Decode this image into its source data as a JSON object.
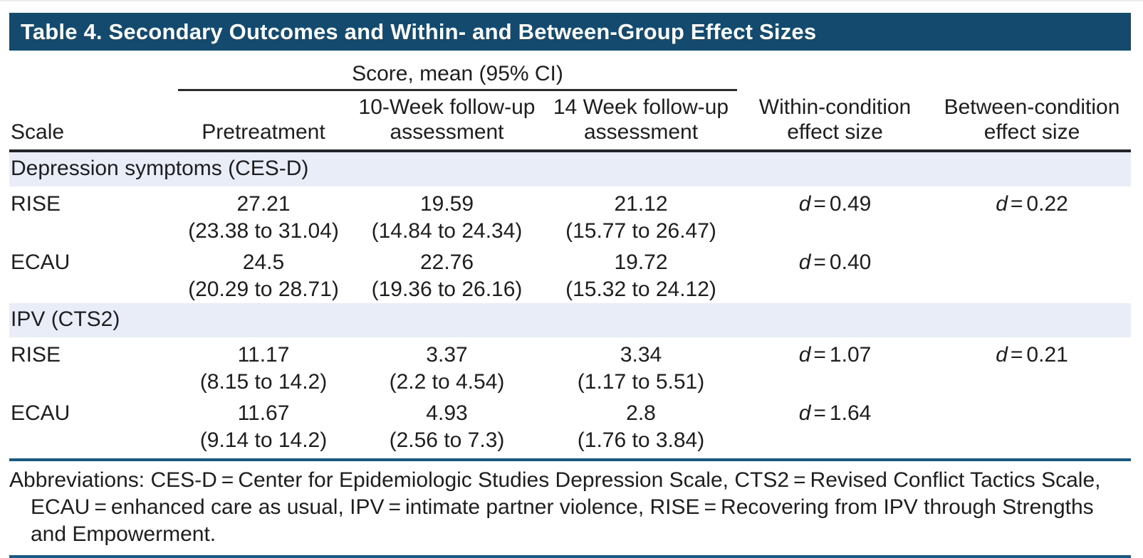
{
  "title": "Table 4. Secondary Outcomes and Within- and Between-Group Effect Sizes",
  "columns": {
    "scale": "Scale",
    "spanner": "Score, mean (95% CI)",
    "pretreatment": "Pretreatment",
    "week10": "10-Week follow-up assessment",
    "week14": "14 Week follow-up assessment",
    "within": "Within-condition effect size",
    "between": "Between-condition effect size"
  },
  "labels": {
    "d_symbol": "d",
    "eq": "="
  },
  "sections": [
    {
      "label": "Depression symptoms (CES-D)",
      "rows": [
        {
          "scale": "RISE",
          "pre": "27.21",
          "pre_ci": "(23.38 to 31.04)",
          "w10": "19.59",
          "w10_ci": "(14.84 to 24.34)",
          "w14": "21.12",
          "w14_ci": "(15.77 to 26.47)",
          "within_d": "0.49",
          "between_d": "0.22"
        },
        {
          "scale": "ECAU",
          "pre": "24.5",
          "pre_ci": "(20.29 to 28.71)",
          "w10": "22.76",
          "w10_ci": "(19.36 to 26.16)",
          "w14": "19.72",
          "w14_ci": "(15.32 to 24.12)",
          "within_d": "0.40",
          "between_d": ""
        }
      ]
    },
    {
      "label": "IPV (CTS2)",
      "rows": [
        {
          "scale": "RISE",
          "pre": "11.17",
          "pre_ci": "(8.15 to 14.2)",
          "w10": "3.37",
          "w10_ci": "(2.2 to 4.54)",
          "w14": "3.34",
          "w14_ci": "(1.17 to 5.51)",
          "within_d": "1.07",
          "between_d": "0.21"
        },
        {
          "scale": "ECAU",
          "pre": "11.67",
          "pre_ci": "(9.14 to 14.2)",
          "w10": "4.93",
          "w10_ci": "(2.56 to 7.3)",
          "w14": "2.8",
          "w14_ci": "(1.76 to 3.84)",
          "within_d": "1.64",
          "between_d": ""
        }
      ]
    }
  ],
  "footnote": {
    "text": "Abbreviations: CES-D = Center for Epidemiologic Studies Depression Scale, CTS2 = Revised Conflict Tactics Scale, ECAU = enhanced care as usual, IPV = intimate partner violence, RISE = Recovering from IPV through Strengths and Empowerment."
  },
  "colors": {
    "header_bar": "#134A6E",
    "band": "#E8EDF8",
    "rule_blue": "#175A83",
    "rule_dark": "#212429",
    "text": "#1E1E20"
  }
}
